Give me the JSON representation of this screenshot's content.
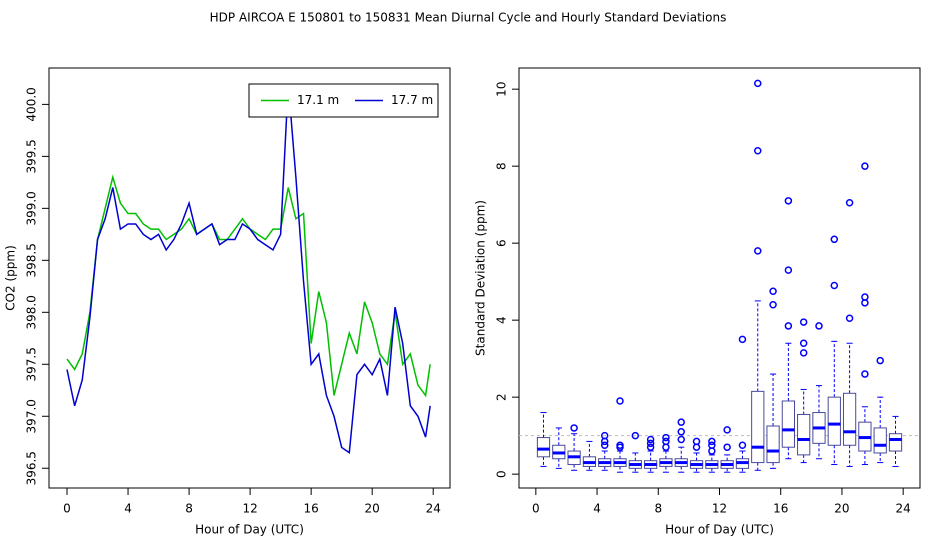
{
  "title": "HDP   AIRCOA E   150801 to 150831   Mean Diurnal Cycle and Hourly Standard Deviations",
  "chart_data": [
    {
      "type": "line",
      "xlabel": "Hour of Day (UTC)",
      "ylabel": "CO2 (ppm)",
      "x": [
        0,
        0.5,
        1,
        1.5,
        2,
        2.5,
        3,
        3.5,
        4,
        4.5,
        5,
        5.5,
        6,
        6.5,
        7,
        7.5,
        8,
        8.5,
        9,
        9.5,
        10,
        10.5,
        11,
        11.5,
        12,
        12.5,
        13,
        13.5,
        14,
        14.5,
        15,
        15.5,
        16,
        16.5,
        17,
        17.5,
        18,
        18.5,
        19,
        19.5,
        20,
        20.5,
        21,
        21.5,
        22,
        22.5,
        23,
        23.5,
        23.8
      ],
      "series": [
        {
          "name": "17.1 m",
          "color": "#00c000",
          "values": [
            397.55,
            397.45,
            397.6,
            398.0,
            398.7,
            399.0,
            399.3,
            399.05,
            398.95,
            398.95,
            398.85,
            398.8,
            398.8,
            398.7,
            398.75,
            398.8,
            398.9,
            398.75,
            398.8,
            398.85,
            398.7,
            398.7,
            398.8,
            398.9,
            398.8,
            398.75,
            398.7,
            398.8,
            398.8,
            399.2,
            398.9,
            398.95,
            397.7,
            398.2,
            397.9,
            397.2,
            397.5,
            397.8,
            397.6,
            398.1,
            397.9,
            397.6,
            397.5,
            398.0,
            397.5,
            397.6,
            397.3,
            397.2,
            397.5
          ]
        },
        {
          "name": "17.7 m",
          "color": "#0000d0",
          "values": [
            397.45,
            397.1,
            397.35,
            397.95,
            398.7,
            398.9,
            399.2,
            398.8,
            398.85,
            398.85,
            398.75,
            398.7,
            398.75,
            398.6,
            398.7,
            398.85,
            399.05,
            398.75,
            398.8,
            398.85,
            398.65,
            398.7,
            398.7,
            398.85,
            398.8,
            398.7,
            398.65,
            398.6,
            398.75,
            400.2,
            399.3,
            398.3,
            397.5,
            397.6,
            397.2,
            397.0,
            396.7,
            396.65,
            397.4,
            397.5,
            397.4,
            397.55,
            397.2,
            398.05,
            397.7,
            397.1,
            397.0,
            396.8,
            397.1
          ]
        }
      ],
      "xlim": [
        -1.18,
        25.1
      ],
      "xticks": [
        0,
        4,
        8,
        12,
        16,
        20,
        24
      ],
      "ylim": [
        396.31,
        400.35
      ],
      "yticks": [
        396.5,
        {
          "value": 397,
          "label": "397.0"
        },
        397.5,
        {
          "value": 398,
          "label": "398.0"
        },
        398.5,
        {
          "value": 399,
          "label": "399.0"
        },
        399.5,
        {
          "value": 400,
          "label": "400.0"
        }
      ],
      "legend": "topright"
    },
    {
      "type": "boxplot",
      "xlabel": "Hour of Day (UTC)",
      "ylabel": "Standard Deviation (ppm)",
      "color": "#0000ff",
      "box_color": "#4a4a9a",
      "reference_line": 1,
      "boxes": [
        {
          "x": 0.5,
          "min": 0.2,
          "q1": 0.45,
          "median": 0.65,
          "q3": 0.95,
          "max": 1.6,
          "outliers": []
        },
        {
          "x": 1.5,
          "min": 0.15,
          "q1": 0.4,
          "median": 0.55,
          "q3": 0.75,
          "max": 1.2,
          "outliers": []
        },
        {
          "x": 2.5,
          "min": 0.1,
          "q1": 0.25,
          "median": 0.45,
          "q3": 0.6,
          "max": 1.05,
          "outliers": [
            1.2
          ]
        },
        {
          "x": 3.5,
          "min": 0.1,
          "q1": 0.2,
          "median": 0.3,
          "q3": 0.45,
          "max": 0.85,
          "outliers": []
        },
        {
          "x": 4.5,
          "min": 0.1,
          "q1": 0.2,
          "median": 0.3,
          "q3": 0.4,
          "max": 0.6,
          "outliers": [
            0.75,
            0.85,
            1.0
          ]
        },
        {
          "x": 5.5,
          "min": 0.05,
          "q1": 0.2,
          "median": 0.3,
          "q3": 0.4,
          "max": 0.6,
          "outliers": [
            0.7,
            0.75,
            1.9
          ]
        },
        {
          "x": 6.5,
          "min": 0.05,
          "q1": 0.15,
          "median": 0.25,
          "q3": 0.35,
          "max": 0.55,
          "outliers": [
            1.0
          ]
        },
        {
          "x": 7.5,
          "min": 0.05,
          "q1": 0.15,
          "median": 0.25,
          "q3": 0.35,
          "max": 0.6,
          "outliers": [
            0.7,
            0.8,
            0.9
          ]
        },
        {
          "x": 8.5,
          "min": 0.05,
          "q1": 0.2,
          "median": 0.3,
          "q3": 0.4,
          "max": 0.6,
          "outliers": [
            0.7,
            0.85,
            0.95
          ]
        },
        {
          "x": 9.5,
          "min": 0.05,
          "q1": 0.2,
          "median": 0.3,
          "q3": 0.4,
          "max": 0.7,
          "outliers": [
            0.9,
            1.1,
            1.35
          ]
        },
        {
          "x": 10.5,
          "min": 0.05,
          "q1": 0.15,
          "median": 0.25,
          "q3": 0.35,
          "max": 0.55,
          "outliers": [
            0.7,
            0.85
          ]
        },
        {
          "x": 11.5,
          "min": 0.05,
          "q1": 0.15,
          "median": 0.25,
          "q3": 0.35,
          "max": 0.5,
          "outliers": [
            0.6,
            0.75,
            0.85
          ]
        },
        {
          "x": 12.5,
          "min": 0.05,
          "q1": 0.15,
          "median": 0.25,
          "q3": 0.35,
          "max": 0.5,
          "outliers": [
            0.7,
            1.15
          ]
        },
        {
          "x": 13.5,
          "min": 0.05,
          "q1": 0.15,
          "median": 0.3,
          "q3": 0.4,
          "max": 0.6,
          "outliers": [
            0.75,
            3.5
          ]
        },
        {
          "x": 14.5,
          "min": 0.1,
          "q1": 0.3,
          "median": 0.7,
          "q3": 2.15,
          "max": 4.5,
          "outliers": [
            5.8,
            8.4,
            10.15
          ]
        },
        {
          "x": 15.5,
          "min": 0.15,
          "q1": 0.3,
          "median": 0.6,
          "q3": 1.25,
          "max": 2.6,
          "outliers": [
            4.4,
            4.75
          ]
        },
        {
          "x": 16.5,
          "min": 0.4,
          "q1": 0.7,
          "median": 1.15,
          "q3": 1.9,
          "max": 3.4,
          "outliers": [
            3.85,
            5.3,
            7.1
          ]
        },
        {
          "x": 17.5,
          "min": 0.3,
          "q1": 0.5,
          "median": 0.9,
          "q3": 1.55,
          "max": 2.2,
          "outliers": [
            3.15,
            3.4,
            3.95
          ]
        },
        {
          "x": 18.5,
          "min": 0.4,
          "q1": 0.8,
          "median": 1.2,
          "q3": 1.6,
          "max": 2.3,
          "outliers": [
            3.85
          ]
        },
        {
          "x": 19.5,
          "min": 0.25,
          "q1": 0.75,
          "median": 1.3,
          "q3": 2.0,
          "max": 3.45,
          "outliers": [
            4.9,
            6.1
          ]
        },
        {
          "x": 20.5,
          "min": 0.2,
          "q1": 0.75,
          "median": 1.1,
          "q3": 2.1,
          "max": 3.4,
          "outliers": [
            4.05,
            7.05
          ]
        },
        {
          "x": 21.5,
          "min": 0.25,
          "q1": 0.6,
          "median": 0.95,
          "q3": 1.35,
          "max": 1.75,
          "outliers": [
            2.6,
            4.45,
            4.6,
            8.0
          ]
        },
        {
          "x": 22.5,
          "min": 0.3,
          "q1": 0.55,
          "median": 0.75,
          "q3": 1.2,
          "max": 2.0,
          "outliers": [
            2.95
          ]
        },
        {
          "x": 23.5,
          "min": 0.2,
          "q1": 0.6,
          "median": 0.9,
          "q3": 1.05,
          "max": 1.5,
          "outliers": []
        }
      ],
      "xlim": [
        -1.1,
        25.1
      ],
      "xticks": [
        0,
        4,
        8,
        12,
        16,
        20,
        24
      ],
      "ylim": [
        -0.36,
        10.55
      ],
      "yticks": [
        0,
        2,
        4,
        6,
        8,
        10
      ]
    }
  ]
}
